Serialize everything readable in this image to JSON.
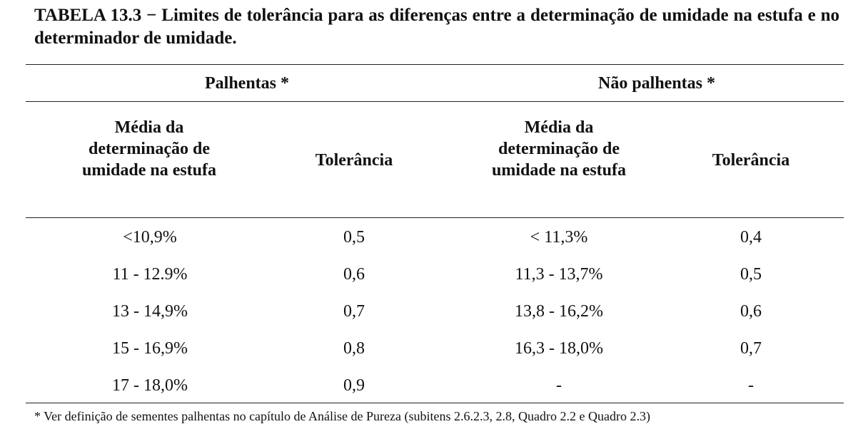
{
  "title": "TABELA 13.3 − Limites de tolerância para as diferenças entre a determinação de umidade na estufa e no determinador de umidade.",
  "groups": {
    "palhentas": "Palhentas *",
    "nao_palhentas": "Não palhentas *"
  },
  "columns": {
    "media_palhentas": "Média da determinação de umidade na estufa",
    "tol_palhentas": "Tolerância",
    "media_nao_palhentas": "Média da determinação de umidade na estufa",
    "tol_nao_palhentas": "Tolerância"
  },
  "rows": [
    [
      "<10,9%",
      "0,5",
      "< 11,3%",
      "0,4"
    ],
    [
      "11 - 12.9%",
      "0,6",
      "11,3 - 13,7%",
      "0,5"
    ],
    [
      "13 - 14,9%",
      "0,7",
      "13,8 - 16,2%",
      "0,6"
    ],
    [
      "15 - 16,9%",
      "0,8",
      "16,3 - 18,0%",
      "0,7"
    ],
    [
      "17 - 18,0%",
      "0,9",
      "-",
      "-"
    ]
  ],
  "footnote": "* Ver definição de sementes palhentas no capítulo de Análise de Pureza (subitens 2.6.2.3, 2.8, Quadro 2.2 e Quadro 2.3)"
}
